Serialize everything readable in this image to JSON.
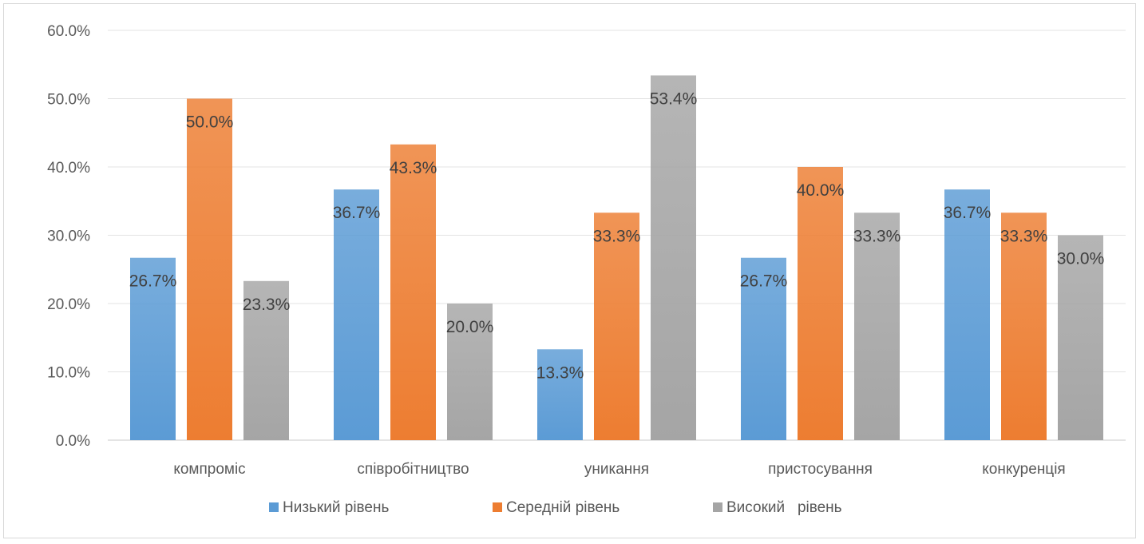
{
  "chart_data": {
    "type": "bar",
    "categories": [
      "компроміс",
      "співробітництво",
      "уникання",
      "пристосування",
      "конкуренція"
    ],
    "series": [
      {
        "name": "Низький рівень",
        "values": [
          26.7,
          36.7,
          13.3,
          26.7,
          36.7
        ],
        "labels": [
          "26.7%",
          "36.7%",
          "13.3%",
          "26.7%",
          "36.7%"
        ],
        "color": "#5b9bd5"
      },
      {
        "name": "Середній рівень",
        "values": [
          50.0,
          43.3,
          33.3,
          40.0,
          33.3
        ],
        "labels": [
          "50.0%",
          "43.3%",
          "33.3%",
          "40.0%",
          "33.3%"
        ],
        "color": "#ed7d31"
      },
      {
        "name": "Високий   рівень",
        "values": [
          23.3,
          20.0,
          53.4,
          33.3,
          30.0
        ],
        "labels": [
          "23.3%",
          "20.0%",
          "53.4%",
          "33.3%",
          "30.0%"
        ],
        "color": "#a5a5a5"
      }
    ],
    "yticks": [
      "0.0%",
      "10.0%",
      "20.0%",
      "30.0%",
      "40.0%",
      "50.0%",
      "60.0%"
    ],
    "ylim": [
      0,
      60
    ],
    "grid": true,
    "legend_position": "bottom",
    "title": "",
    "xlabel": "",
    "ylabel": ""
  }
}
